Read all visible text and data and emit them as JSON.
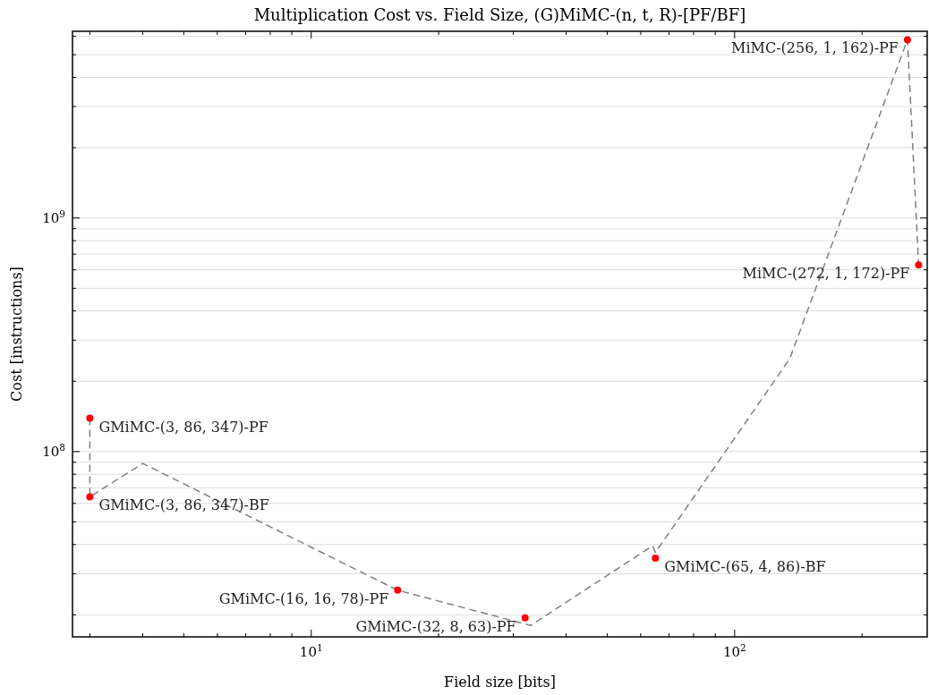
{
  "chart_data": {
    "type": "scatter",
    "title": "Multiplication Cost vs. Field Size, (G)MiMC-(n, t, R)-[PF/BF]",
    "xlabel": "Field size [bits]",
    "ylabel": "Cost [instructions]",
    "log": "xy",
    "grid": "y",
    "marker": "circle",
    "xlim": [
      2.73,
      285
    ],
    "ylim": [
      16100000.0,
      6300000000.0
    ],
    "xticks": [
      {
        "value": 3,
        "label": null
      },
      {
        "value": 4,
        "label": null
      },
      {
        "value": 5,
        "label": null
      },
      {
        "value": 6,
        "label": null
      },
      {
        "value": 7,
        "label": null
      },
      {
        "value": 8,
        "label": null
      },
      {
        "value": 9,
        "label": null
      },
      {
        "value": 10,
        "label": "10$^{1}$"
      },
      {
        "value": 20,
        "label": null
      },
      {
        "value": 30,
        "label": null
      },
      {
        "value": 40,
        "label": null
      },
      {
        "value": 50,
        "label": null
      },
      {
        "value": 60,
        "label": null
      },
      {
        "value": 70,
        "label": null
      },
      {
        "value": 80,
        "label": null
      },
      {
        "value": 90,
        "label": null
      },
      {
        "value": 100,
        "label": "10$^{2}$"
      },
      {
        "value": 200,
        "label": null
      }
    ],
    "yticks": [
      {
        "value": 20000000.0,
        "label": null
      },
      {
        "value": 30000000.0,
        "label": null
      },
      {
        "value": 40000000.0,
        "label": null
      },
      {
        "value": 50000000.0,
        "label": null
      },
      {
        "value": 60000000.0,
        "label": null
      },
      {
        "value": 70000000.0,
        "label": null
      },
      {
        "value": 80000000.0,
        "label": null
      },
      {
        "value": 90000000.0,
        "label": null
      },
      {
        "value": 100000000.0,
        "label": "10$^{8}$"
      },
      {
        "value": 200000000.0,
        "label": null
      },
      {
        "value": 300000000.0,
        "label": null
      },
      {
        "value": 400000000.0,
        "label": null
      },
      {
        "value": 500000000.0,
        "label": null
      },
      {
        "value": 600000000.0,
        "label": null
      },
      {
        "value": 700000000.0,
        "label": null
      },
      {
        "value": 800000000.0,
        "label": null
      },
      {
        "value": 900000000.0,
        "label": null
      },
      {
        "value": 1000000000.0,
        "label": "10$^{9}$"
      },
      {
        "value": 2000000000.0,
        "label": null
      },
      {
        "value": 3000000000.0,
        "label": null
      },
      {
        "value": 4000000000.0,
        "label": null
      },
      {
        "value": 5000000000.0,
        "label": null
      },
      {
        "value": 6000000000.0,
        "label": null
      }
    ],
    "series": [
      {
        "type": "line",
        "color": "#808080",
        "line_style": "dashed",
        "marker": "none",
        "x": [
          3,
          3,
          4,
          16,
          33,
          64,
          65,
          135,
          256,
          272
        ],
        "values": [
          139000000.0,
          64000000.0,
          89000000.0,
          25500000.0,
          18000000.0,
          39500000.0,
          37000000.0,
          250000000.0,
          5800000000.0,
          630000000.0
        ]
      },
      {
        "color": "#ff0000",
        "x": [
          3,
          3,
          16,
          32,
          65,
          256,
          272
        ],
        "values": [
          139000000.0,
          64000000.0,
          25500000.0,
          19400000.0,
          35000000.0,
          5800000000.0,
          630000000.0
        ]
      }
    ],
    "annotations": [
      {
        "text": "GMiMC-(3, 86, 347)-PF",
        "x": 3,
        "y": 139000000.0
      },
      {
        "text": "GMiMC-(3, 86, 347)-BF",
        "x": 3,
        "y": 64000000.0
      },
      {
        "text": "GMiMC-(16, 16, 78)-PF",
        "x": 16,
        "y": 25500000.0
      },
      {
        "text": "GMiMC-(32, 8, 63)-PF",
        "x": 32,
        "y": 19400000.0
      },
      {
        "text": "GMiMC-(65, 4, 86)-BF",
        "x": 65,
        "y": 35000000.0
      },
      {
        "text": "MiMC-(256, 1, 162)-PF",
        "x": 256,
        "y": 5800000000.0
      },
      {
        "text": "MiMC-(272, 1, 172)-PF",
        "x": 272,
        "y": 630000000.0
      }
    ]
  }
}
